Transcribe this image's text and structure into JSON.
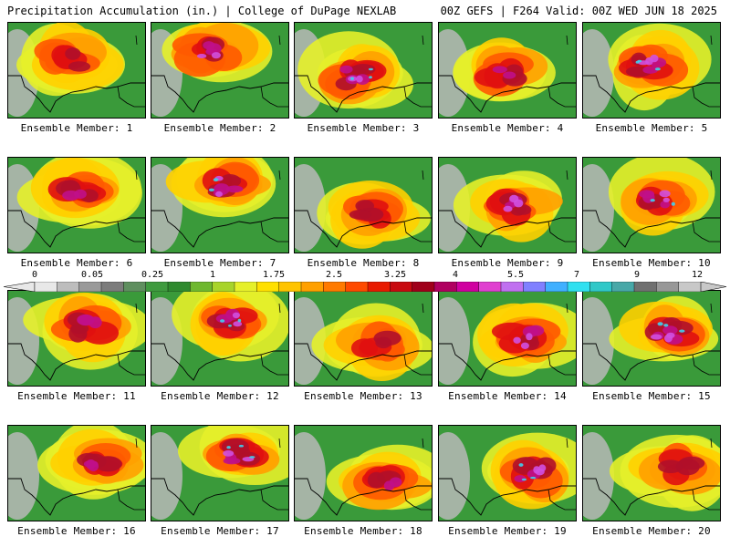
{
  "header": {
    "left_title": "Precipitation Accumulation (in.) | College of DuPage NEXLAB",
    "right_title": "00Z GEFS | F264 Valid: 00Z WED JUN 18 2025"
  },
  "panels": [
    {
      "label": "Ensemble Member: 1"
    },
    {
      "label": "Ensemble Member: 2"
    },
    {
      "label": "Ensemble Member: 3"
    },
    {
      "label": "Ensemble Member: 4"
    },
    {
      "label": "Ensemble Member: 5"
    },
    {
      "label": "Ensemble Member: 6"
    },
    {
      "label": "Ensemble Member: 7"
    },
    {
      "label": "Ensemble Member: 8"
    },
    {
      "label": "Ensemble Member: 9"
    },
    {
      "label": "Ensemble Member: 10"
    },
    {
      "label": "Ensemble Member: 11"
    },
    {
      "label": "Ensemble Member: 12"
    },
    {
      "label": "Ensemble Member: 13"
    },
    {
      "label": "Ensemble Member: 14"
    },
    {
      "label": "Ensemble Member: 15"
    },
    {
      "label": "Ensemble Member: 16"
    },
    {
      "label": "Ensemble Member: 17"
    },
    {
      "label": "Ensemble Member: 18"
    },
    {
      "label": "Ensemble Member: 19"
    },
    {
      "label": "Ensemble Member: 20"
    }
  ],
  "colorbar": {
    "labels": [
      "0",
      "0.05",
      "0.25",
      "1",
      "1.75",
      "2.5",
      "3.25",
      "4",
      "5.5",
      "7",
      "9",
      "12"
    ],
    "colors": [
      "#e8e8e8",
      "#bdbdbd",
      "#9a9a9a",
      "#7c7c7c",
      "#5f8f5f",
      "#3f9b3f",
      "#2f8a2f",
      "#6fb82f",
      "#a8d42a",
      "#e6f02a",
      "#ffe000",
      "#ffc400",
      "#ffa000",
      "#ff7a00",
      "#ff4a00",
      "#e81a00",
      "#c80a10",
      "#a0001a",
      "#b00060",
      "#d000a0",
      "#e040d0",
      "#c070f0",
      "#8080ff",
      "#40b0ff",
      "#30e0f0",
      "#30c8c8",
      "#48a8a8",
      "#707070",
      "#989898",
      "#c8c8c8"
    ]
  }
}
